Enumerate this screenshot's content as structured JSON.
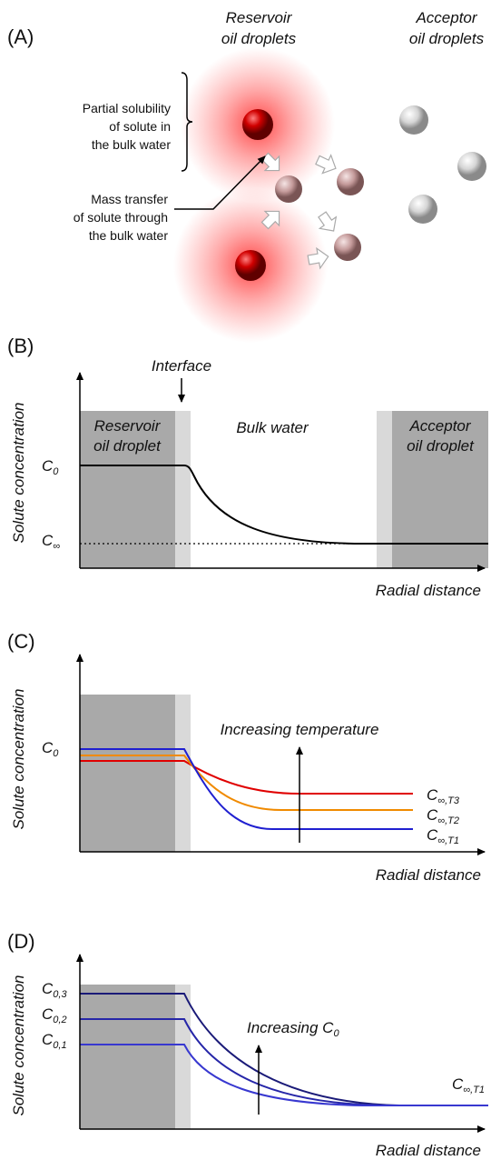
{
  "panel_a": {
    "label": "(A)",
    "reservoir": [
      "Reservoir",
      "oil droplets"
    ],
    "acceptor": [
      "Acceptor",
      "oil droplets"
    ],
    "solubility_note": [
      "Partial solubility",
      "of solute in",
      "the bulk water"
    ],
    "transfer_note": [
      "Mass transfer",
      "of solute through",
      "the bulk water"
    ]
  },
  "panel_b": {
    "label": "(B)",
    "y_axis": "Solute concentration",
    "x_axis": "Radial distance",
    "interface": "Interface",
    "reservoir": [
      "Reservoir",
      "oil droplet"
    ],
    "bulk": "Bulk water",
    "acceptor": [
      "Acceptor",
      "oil droplet"
    ],
    "c0": {
      "main": "C",
      "sub": "0"
    },
    "cinf": {
      "main": "C",
      "sub": "∞"
    }
  },
  "panel_c": {
    "label": "(C)",
    "y_axis": "Solute concentration",
    "x_axis": "Radial distance",
    "annotation": "Increasing temperature",
    "c0": {
      "main": "C",
      "sub": "0"
    },
    "curve_labels": [
      {
        "main": "C",
        "sub": "∞,T3"
      },
      {
        "main": "C",
        "sub": "∞,T2"
      },
      {
        "main": "C",
        "sub": "∞,T1"
      }
    ]
  },
  "panel_d": {
    "label": "(D)",
    "y_axis": "Solute concentration",
    "x_axis": "Radial distance",
    "annotation": {
      "main": "Increasing C",
      "sub": "0"
    },
    "c0_labels": [
      {
        "main": "C",
        "sub": "0,3"
      },
      {
        "main": "C",
        "sub": "0,2"
      },
      {
        "main": "C",
        "sub": "0,1"
      }
    ],
    "cinf": {
      "main": "C",
      "sub": "∞,T1"
    }
  }
}
